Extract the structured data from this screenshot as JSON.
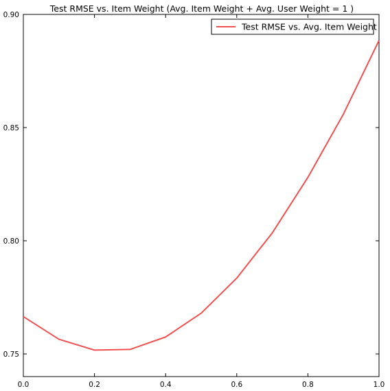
{
  "chart_data": {
    "type": "line",
    "title": "Test RMSE vs. Item Weight (Avg. Item Weight + Avg. User Weight = 1 )",
    "xlabel": "",
    "ylabel": "",
    "xlim": [
      0.0,
      1.0
    ],
    "ylim": [
      0.74,
      0.9
    ],
    "x_ticks": [
      0.0,
      0.2,
      0.4,
      0.6,
      0.8,
      1.0
    ],
    "x_tick_labels": [
      "0.0",
      "0.2",
      "0.4",
      "0.6",
      "0.8",
      "1.0"
    ],
    "y_ticks": [
      0.75,
      0.8,
      0.85,
      0.9
    ],
    "y_tick_labels": [
      "0.75",
      "0.80",
      "0.85",
      "0.90"
    ],
    "grid": false,
    "legend_position": "top-right",
    "series": [
      {
        "name": "Test RMSE vs. Avg. Item Weight",
        "color": "#f05050",
        "x": [
          0.0,
          0.1,
          0.2,
          0.3,
          0.4,
          0.5,
          0.6,
          0.7,
          0.8,
          0.9,
          1.0
        ],
        "values": [
          0.7665,
          0.7565,
          0.7517,
          0.752,
          0.7575,
          0.768,
          0.7835,
          0.8035,
          0.828,
          0.856,
          0.8885
        ]
      }
    ]
  }
}
